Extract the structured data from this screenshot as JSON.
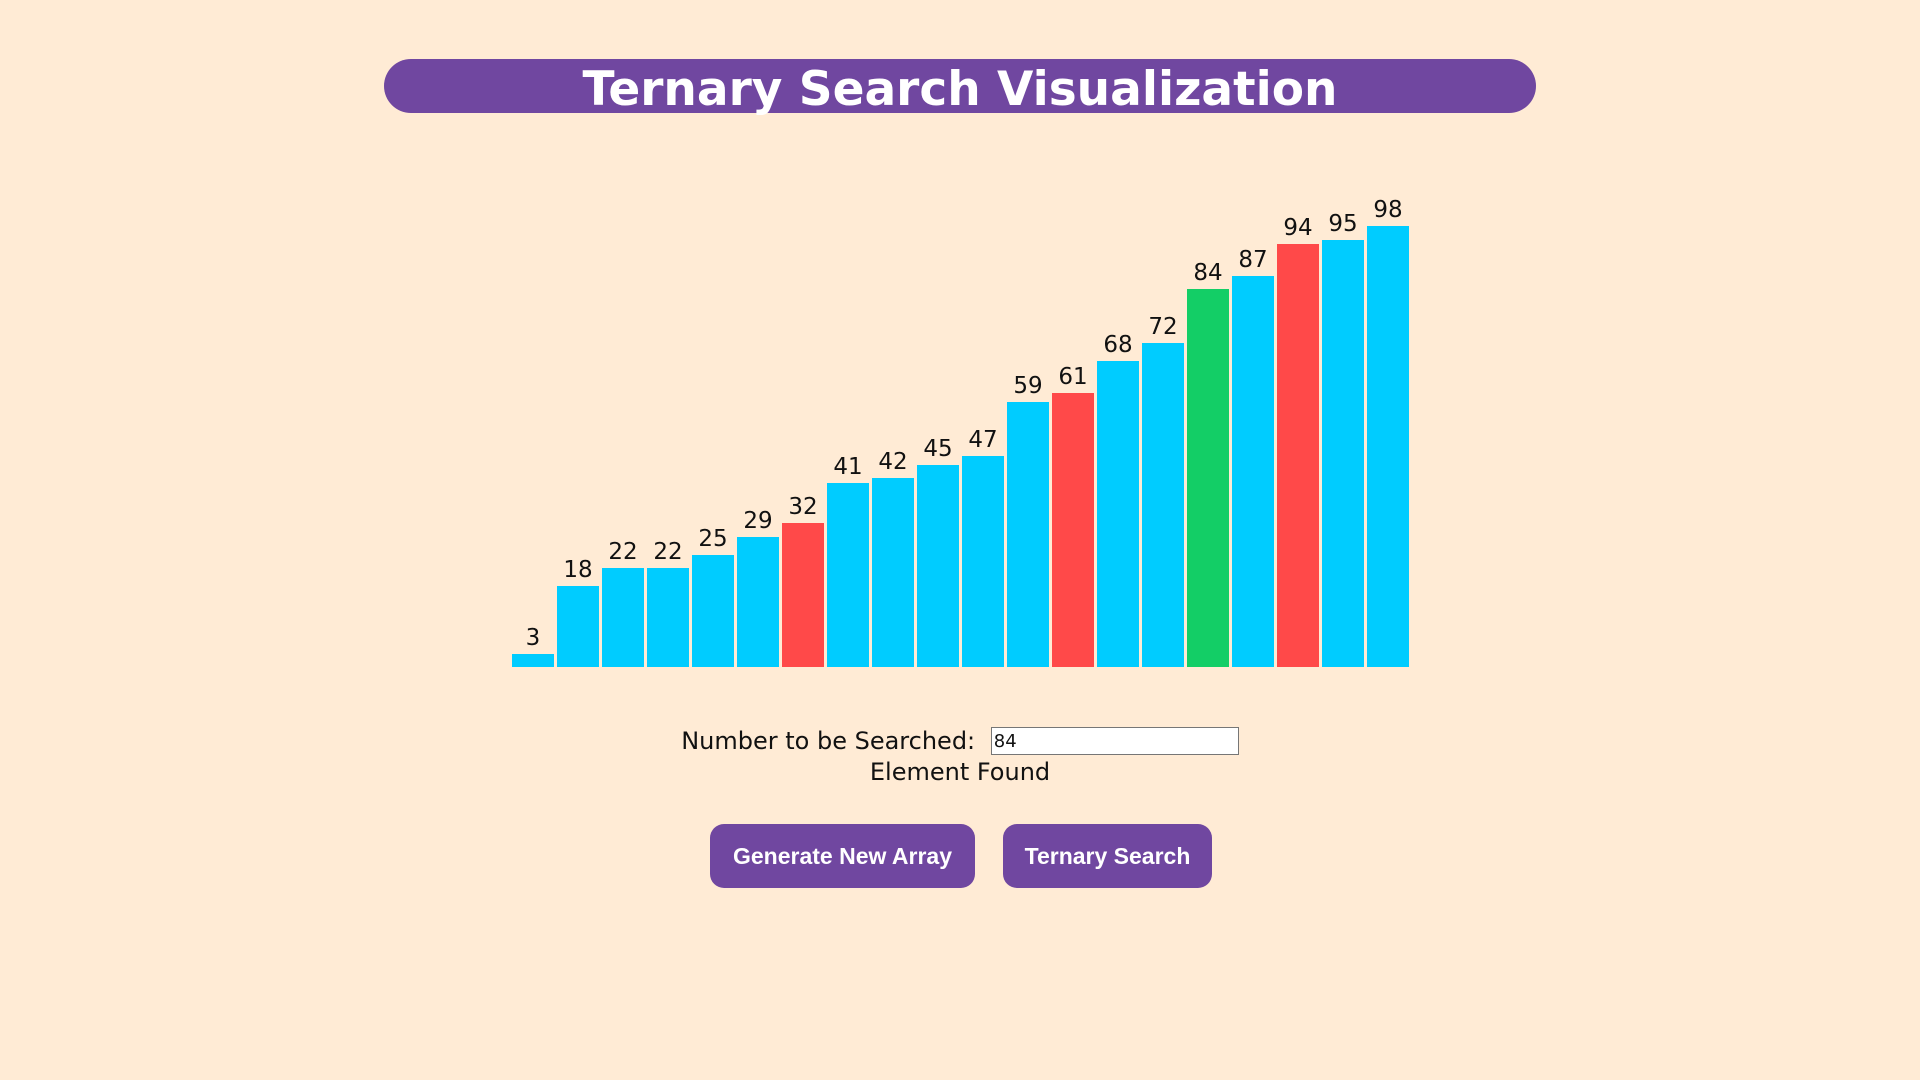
{
  "header": {
    "title": "Ternary Search Visualization"
  },
  "chart_data": {
    "type": "bar",
    "values": [
      3,
      18,
      22,
      22,
      25,
      29,
      32,
      41,
      42,
      45,
      47,
      59,
      61,
      68,
      72,
      84,
      87,
      94,
      95,
      98
    ],
    "bar_states": [
      "default",
      "default",
      "default",
      "default",
      "default",
      "default",
      "mid",
      "default",
      "default",
      "default",
      "default",
      "default",
      "mid",
      "default",
      "default",
      "found",
      "default",
      "mid",
      "default",
      "default"
    ],
    "ylim": [
      0,
      100
    ],
    "grid": false,
    "legend": "none"
  },
  "colors": {
    "default": "#00ccff",
    "mid": "#ff4949",
    "found": "#13ce66",
    "accent": "#7047a0",
    "background": "#ffebd5"
  },
  "search": {
    "label": "Number to be Searched:",
    "value": "84"
  },
  "status": {
    "text": "Element Found"
  },
  "buttons": {
    "generate_label": "Generate New Array",
    "search_label": "Ternary Search"
  }
}
